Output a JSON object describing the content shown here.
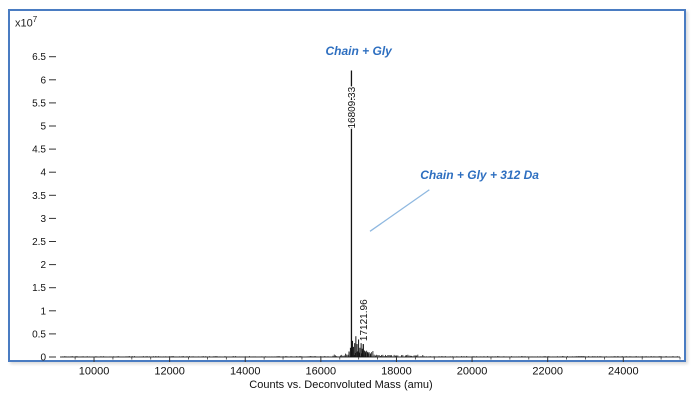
{
  "chart_data": {
    "type": "line",
    "subtype": "deconvoluted-mass-spectrum",
    "title": "",
    "xlabel": "Counts vs. Deconvoluted Mass (amu)",
    "ylabel": "Counts",
    "y_multiplier": {
      "base": "x10",
      "exp": "7"
    },
    "xlim": [
      9100,
      25500
    ],
    "ylim_e7": [
      0,
      7.4
    ],
    "x_ticks": [
      10000,
      12000,
      14000,
      16000,
      18000,
      20000,
      22000,
      24000
    ],
    "y_ticks_e7": [
      0,
      0.5,
      1,
      1.5,
      2,
      2.5,
      3,
      3.5,
      4,
      4.5,
      5,
      5.5,
      6,
      6.5
    ],
    "grid": false,
    "legend": false,
    "peaks": [
      {
        "mass": 16809.33,
        "intensity_e7": 6.2,
        "label": "16809.33"
      },
      {
        "mass": 17121.96,
        "intensity_e7": 0.28,
        "label": "17121.96"
      }
    ],
    "minor_peaks": [
      [
        16745,
        0.12
      ],
      [
        16782,
        0.2
      ],
      [
        16838,
        0.35
      ],
      [
        16862,
        0.22
      ],
      [
        16895,
        0.3
      ],
      [
        16926,
        0.45
      ],
      [
        16958,
        0.28
      ],
      [
        16998,
        0.38
      ],
      [
        17032,
        0.2
      ],
      [
        17065,
        0.3
      ],
      [
        17095,
        0.18
      ],
      [
        17152,
        0.14
      ],
      [
        17185,
        0.12
      ],
      [
        17228,
        0.1
      ],
      [
        17266,
        0.08
      ],
      [
        17310,
        0.06
      ]
    ],
    "annotations": [
      {
        "id": "chain-gly",
        "text": "Chain + Gly",
        "mass": 17000,
        "value_e7": 6.62
      },
      {
        "id": "chain-gly-312",
        "text": "Chain + Gly + 312 Da",
        "mass": 20200,
        "value_e7": 3.95,
        "leader": {
          "from_mass": 18870,
          "from_e7": 3.62,
          "to_mass": 17300,
          "to_e7": 2.72
        }
      }
    ],
    "colors": {
      "frame": "#4a7cc2",
      "spectrum": "#141414",
      "axis": "#333333",
      "tick": "#333333",
      "annotation": "#2e6fc0",
      "leader": "#8fb8e0"
    }
  }
}
